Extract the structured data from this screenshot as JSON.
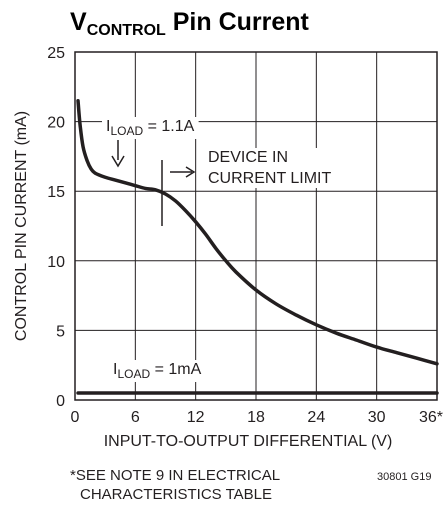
{
  "chart_data": {
    "type": "line",
    "title": {
      "main": "V",
      "sub": "CONTROL",
      "rest": " Pin Current"
    },
    "xlabel": "INPUT-TO-OUTPUT DIFFERENTIAL (V)",
    "ylabel": "CONTROL PIN CURRENT (mA)",
    "xlim": [
      0,
      36
    ],
    "ylim": [
      0,
      25
    ],
    "xticks": [
      "0",
      "6",
      "12",
      "18",
      "24",
      "30",
      "36*"
    ],
    "xtick_values": [
      0,
      6,
      12,
      18,
      24,
      30,
      36
    ],
    "yticks": [
      "0",
      "5",
      "10",
      "15",
      "20",
      "25"
    ],
    "ytick_values": [
      0,
      5,
      10,
      15,
      20,
      25
    ],
    "grid": true,
    "series": [
      {
        "name": "ILOAD = 1.1A",
        "x": [
          0.3,
          0.5,
          0.8,
          1.2,
          1.6,
          2.0,
          3,
          4,
          5,
          6,
          7,
          8,
          9,
          10,
          11,
          12,
          13,
          14,
          15,
          16,
          18,
          20,
          22,
          24,
          26,
          28,
          30,
          32,
          34,
          36
        ],
        "y": [
          21.5,
          19.8,
          18.2,
          17.2,
          16.6,
          16.3,
          16.0,
          15.8,
          15.6,
          15.4,
          15.2,
          15.1,
          14.8,
          14.3,
          13.6,
          12.8,
          11.9,
          10.9,
          10.0,
          9.2,
          7.9,
          6.9,
          6.1,
          5.4,
          4.8,
          4.3,
          3.8,
          3.4,
          3.0,
          2.6
        ]
      },
      {
        "name": "ILOAD = 1mA",
        "x": [
          0.3,
          36
        ],
        "y": [
          0.5,
          0.5
        ]
      }
    ],
    "annotations": {
      "iload_high": {
        "prefix": "I",
        "sub": "LOAD",
        "rest": " = 1.1A"
      },
      "iload_low": {
        "prefix": "I",
        "sub": "LOAD",
        "rest": " = 1mA"
      },
      "current_limit": [
        "DEVICE IN",
        "CURRENT LIMIT"
      ]
    },
    "footnote": [
      "*SEE NOTE 9 IN ELECTRICAL",
      "CHARACTERISTICS TABLE"
    ],
    "figure_code": "30801 G19"
  }
}
